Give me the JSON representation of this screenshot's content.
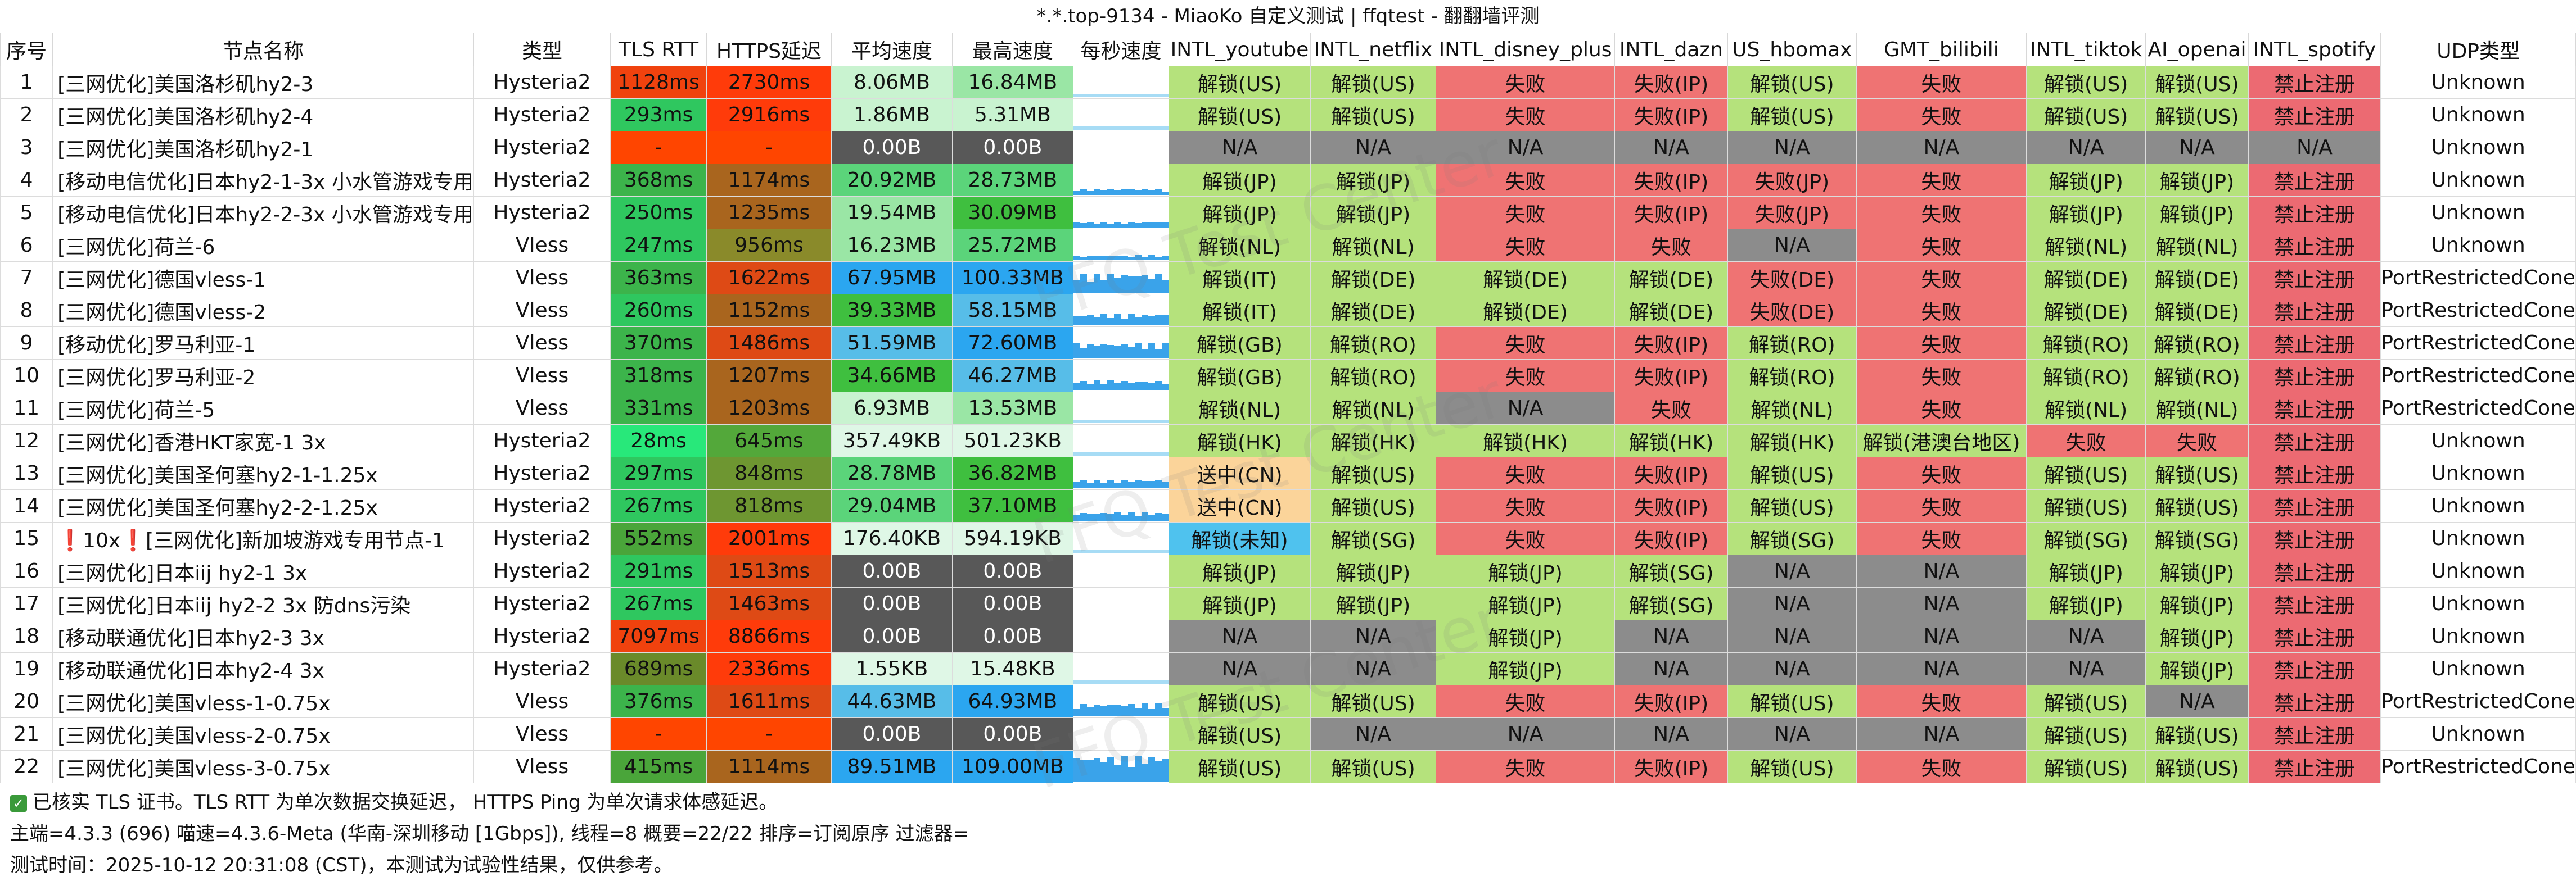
{
  "title": "*.*.top-9134 - MiaoKo 自定义测试 | ffqtest - 翻翻墙评测",
  "columns": [
    "序号",
    "节点名称",
    "类型",
    "TLS RTT",
    "HTTPS延迟",
    "平均速度",
    "最高速度",
    "每秒速度",
    "INTL_youtube",
    "INTL_netflix",
    "INTL_disney_plus",
    "INTL_dazn",
    "US_hbomax",
    "GMT_bilibili",
    "INTL_tiktok",
    "AI_openai",
    "INTL_spotify",
    "UDP类型"
  ],
  "rows": [
    {
      "id": "1",
      "name": "[三网优化]美国洛杉矶hy2-3",
      "type": "Hysteria2",
      "tls": "1128ms",
      "https": "2730ms",
      "avg": "8.06MB",
      "max": "16.84MB",
      "youtube": "解锁(US)",
      "netflix": "解锁(US)",
      "disney": "失败",
      "dazn": "失败(IP)",
      "hbomax": "解锁(US)",
      "bilibili": "失败",
      "tiktok": "解锁(US)",
      "openai": "解锁(US)",
      "spotify": "禁止注册",
      "udp": "Unknown"
    },
    {
      "id": "2",
      "name": "[三网优化]美国洛杉矶hy2-4",
      "type": "Hysteria2",
      "tls": "293ms",
      "https": "2916ms",
      "avg": "1.86MB",
      "max": "5.31MB",
      "youtube": "解锁(US)",
      "netflix": "解锁(US)",
      "disney": "失败",
      "dazn": "失败(IP)",
      "hbomax": "解锁(US)",
      "bilibili": "失败",
      "tiktok": "解锁(US)",
      "openai": "解锁(US)",
      "spotify": "禁止注册",
      "udp": "Unknown"
    },
    {
      "id": "3",
      "name": "[三网优化]美国洛杉矶hy2-1",
      "type": "Hysteria2",
      "tls": "-",
      "https": "-",
      "avg": "0.00B",
      "max": "0.00B",
      "youtube": "N/A",
      "netflix": "N/A",
      "disney": "N/A",
      "dazn": "N/A",
      "hbomax": "N/A",
      "bilibili": "N/A",
      "tiktok": "N/A",
      "openai": "N/A",
      "spotify": "N/A",
      "udp": "Unknown"
    },
    {
      "id": "4",
      "name": "[移动电信优化]日本hy2-1-3x 小水管游戏专用",
      "type": "Hysteria2",
      "tls": "368ms",
      "https": "1174ms",
      "avg": "20.92MB",
      "max": "28.73MB",
      "youtube": "解锁(JP)",
      "netflix": "解锁(JP)",
      "disney": "失败",
      "dazn": "失败(IP)",
      "hbomax": "失败(JP)",
      "bilibili": "失败",
      "tiktok": "解锁(JP)",
      "openai": "解锁(JP)",
      "spotify": "禁止注册",
      "udp": "Unknown"
    },
    {
      "id": "5",
      "name": "[移动电信优化]日本hy2-2-3x 小水管游戏专用",
      "type": "Hysteria2",
      "tls": "250ms",
      "https": "1235ms",
      "avg": "19.54MB",
      "max": "30.09MB",
      "youtube": "解锁(JP)",
      "netflix": "解锁(JP)",
      "disney": "失败",
      "dazn": "失败(IP)",
      "hbomax": "失败(JP)",
      "bilibili": "失败",
      "tiktok": "解锁(JP)",
      "openai": "解锁(JP)",
      "spotify": "禁止注册",
      "udp": "Unknown"
    },
    {
      "id": "6",
      "name": "[三网优化]荷兰-6",
      "type": "Vless",
      "tls": "247ms",
      "https": "956ms",
      "avg": "16.23MB",
      "max": "25.72MB",
      "youtube": "解锁(NL)",
      "netflix": "解锁(NL)",
      "disney": "失败",
      "dazn": "失败",
      "hbomax": "N/A",
      "bilibili": "失败",
      "tiktok": "解锁(NL)",
      "openai": "解锁(NL)",
      "spotify": "禁止注册",
      "udp": "Unknown"
    },
    {
      "id": "7",
      "name": "[三网优化]德国vless-1",
      "type": "Vless",
      "tls": "363ms",
      "https": "1622ms",
      "avg": "67.95MB",
      "max": "100.33MB",
      "youtube": "解锁(IT)",
      "netflix": "解锁(DE)",
      "disney": "解锁(DE)",
      "dazn": "解锁(DE)",
      "hbomax": "失败(DE)",
      "bilibili": "失败",
      "tiktok": "解锁(DE)",
      "openai": "解锁(DE)",
      "spotify": "禁止注册",
      "udp": "PortRestrictedCone"
    },
    {
      "id": "8",
      "name": "[三网优化]德国vless-2",
      "type": "Vless",
      "tls": "260ms",
      "https": "1152ms",
      "avg": "39.33MB",
      "max": "58.15MB",
      "youtube": "解锁(IT)",
      "netflix": "解锁(DE)",
      "disney": "解锁(DE)",
      "dazn": "解锁(DE)",
      "hbomax": "失败(DE)",
      "bilibili": "失败",
      "tiktok": "解锁(DE)",
      "openai": "解锁(DE)",
      "spotify": "禁止注册",
      "udp": "PortRestrictedCone"
    },
    {
      "id": "9",
      "name": "[移动优化]罗马利亚-1",
      "type": "Vless",
      "tls": "370ms",
      "https": "1486ms",
      "avg": "51.59MB",
      "max": "72.60MB",
      "youtube": "解锁(GB)",
      "netflix": "解锁(RO)",
      "disney": "失败",
      "dazn": "失败(IP)",
      "hbomax": "解锁(RO)",
      "bilibili": "失败",
      "tiktok": "解锁(RO)",
      "openai": "解锁(RO)",
      "spotify": "禁止注册",
      "udp": "PortRestrictedCone"
    },
    {
      "id": "10",
      "name": "[三网优化]罗马利亚-2",
      "type": "Vless",
      "tls": "318ms",
      "https": "1207ms",
      "avg": "34.66MB",
      "max": "46.27MB",
      "youtube": "解锁(GB)",
      "netflix": "解锁(RO)",
      "disney": "失败",
      "dazn": "失败(IP)",
      "hbomax": "解锁(RO)",
      "bilibili": "失败",
      "tiktok": "解锁(RO)",
      "openai": "解锁(RO)",
      "spotify": "禁止注册",
      "udp": "PortRestrictedCone"
    },
    {
      "id": "11",
      "name": "[三网优化]荷兰-5",
      "type": "Vless",
      "tls": "331ms",
      "https": "1203ms",
      "avg": "6.93MB",
      "max": "13.53MB",
      "youtube": "解锁(NL)",
      "netflix": "解锁(NL)",
      "disney": "N/A",
      "dazn": "失败",
      "hbomax": "解锁(NL)",
      "bilibili": "失败",
      "tiktok": "解锁(NL)",
      "openai": "解锁(NL)",
      "spotify": "禁止注册",
      "udp": "PortRestrictedCone"
    },
    {
      "id": "12",
      "name": "[三网优化]香港HKT家宽-1 3x",
      "type": "Hysteria2",
      "tls": "28ms",
      "https": "645ms",
      "avg": "357.49KB",
      "max": "501.23KB",
      "youtube": "解锁(HK)",
      "netflix": "解锁(HK)",
      "disney": "解锁(HK)",
      "dazn": "解锁(HK)",
      "hbomax": "解锁(HK)",
      "bilibili": "解锁(港澳台地区)",
      "tiktok": "失败",
      "openai": "失败",
      "spotify": "禁止注册",
      "udp": "Unknown"
    },
    {
      "id": "13",
      "name": "[三网优化]美国圣何塞hy2-1-1.25x",
      "type": "Hysteria2",
      "tls": "297ms",
      "https": "848ms",
      "avg": "28.78MB",
      "max": "36.82MB",
      "youtube": "送中(CN)",
      "netflix": "解锁(US)",
      "disney": "失败",
      "dazn": "失败(IP)",
      "hbomax": "解锁(US)",
      "bilibili": "失败",
      "tiktok": "解锁(US)",
      "openai": "解锁(US)",
      "spotify": "禁止注册",
      "udp": "Unknown"
    },
    {
      "id": "14",
      "name": "[三网优化]美国圣何塞hy2-2-1.25x",
      "type": "Hysteria2",
      "tls": "267ms",
      "https": "818ms",
      "avg": "29.04MB",
      "max": "37.10MB",
      "youtube": "送中(CN)",
      "netflix": "解锁(US)",
      "disney": "失败",
      "dazn": "失败(IP)",
      "hbomax": "解锁(US)",
      "bilibili": "失败",
      "tiktok": "解锁(US)",
      "openai": "解锁(US)",
      "spotify": "禁止注册",
      "udp": "Unknown"
    },
    {
      "id": "15",
      "name": "❗10x❗[三网优化]新加坡游戏专用节点-1",
      "type": "Hysteria2",
      "tls": "552ms",
      "https": "2001ms",
      "avg": "176.40KB",
      "max": "594.19KB",
      "youtube": "解锁(未知)",
      "netflix": "解锁(SG)",
      "disney": "失败",
      "dazn": "失败(IP)",
      "hbomax": "解锁(SG)",
      "bilibili": "失败",
      "tiktok": "解锁(SG)",
      "openai": "解锁(SG)",
      "spotify": "禁止注册",
      "udp": "Unknown"
    },
    {
      "id": "16",
      "name": "[三网优化]日本iij hy2-1 3x",
      "type": "Hysteria2",
      "tls": "291ms",
      "https": "1513ms",
      "avg": "0.00B",
      "max": "0.00B",
      "youtube": "解锁(JP)",
      "netflix": "解锁(JP)",
      "disney": "解锁(JP)",
      "dazn": "解锁(SG)",
      "hbomax": "N/A",
      "bilibili": "N/A",
      "tiktok": "解锁(JP)",
      "openai": "解锁(JP)",
      "spotify": "禁止注册",
      "udp": "Unknown"
    },
    {
      "id": "17",
      "name": "[三网优化]日本iij hy2-2 3x 防dns污染",
      "type": "Hysteria2",
      "tls": "267ms",
      "https": "1463ms",
      "avg": "0.00B",
      "max": "0.00B",
      "youtube": "解锁(JP)",
      "netflix": "解锁(JP)",
      "disney": "解锁(JP)",
      "dazn": "解锁(SG)",
      "hbomax": "N/A",
      "bilibili": "N/A",
      "tiktok": "解锁(JP)",
      "openai": "解锁(JP)",
      "spotify": "禁止注册",
      "udp": "Unknown"
    },
    {
      "id": "18",
      "name": "[移动联通优化]日本hy2-3 3x",
      "type": "Hysteria2",
      "tls": "7097ms",
      "https": "8866ms",
      "avg": "0.00B",
      "max": "0.00B",
      "youtube": "N/A",
      "netflix": "N/A",
      "disney": "解锁(JP)",
      "dazn": "N/A",
      "hbomax": "N/A",
      "bilibili": "N/A",
      "tiktok": "N/A",
      "openai": "解锁(JP)",
      "spotify": "禁止注册",
      "udp": "Unknown"
    },
    {
      "id": "19",
      "name": "[移动联通优化]日本hy2-4 3x",
      "type": "Hysteria2",
      "tls": "689ms",
      "https": "2336ms",
      "avg": "1.55KB",
      "max": "15.48KB",
      "youtube": "N/A",
      "netflix": "N/A",
      "disney": "解锁(JP)",
      "dazn": "N/A",
      "hbomax": "N/A",
      "bilibili": "N/A",
      "tiktok": "N/A",
      "openai": "解锁(JP)",
      "spotify": "禁止注册",
      "udp": "Unknown"
    },
    {
      "id": "20",
      "name": "[三网优化]美国vless-1-0.75x",
      "type": "Vless",
      "tls": "376ms",
      "https": "1611ms",
      "avg": "44.63MB",
      "max": "64.93MB",
      "youtube": "解锁(US)",
      "netflix": "解锁(US)",
      "disney": "失败",
      "dazn": "失败(IP)",
      "hbomax": "解锁(US)",
      "bilibili": "失败",
      "tiktok": "解锁(US)",
      "openai": "N/A",
      "spotify": "禁止注册",
      "udp": "PortRestrictedCone"
    },
    {
      "id": "21",
      "name": "[三网优化]美国vless-2-0.75x",
      "type": "Vless",
      "tls": "-",
      "https": "-",
      "avg": "0.00B",
      "max": "0.00B",
      "youtube": "解锁(US)",
      "netflix": "N/A",
      "disney": "N/A",
      "dazn": "N/A",
      "hbomax": "N/A",
      "bilibili": "N/A",
      "tiktok": "解锁(US)",
      "openai": "解锁(US)",
      "spotify": "禁止注册",
      "udp": "Unknown"
    },
    {
      "id": "22",
      "name": "[三网优化]美国vless-3-0.75x",
      "type": "Vless",
      "tls": "415ms",
      "https": "1114ms",
      "avg": "89.51MB",
      "max": "109.00MB",
      "youtube": "解锁(US)",
      "netflix": "解锁(US)",
      "disney": "失败",
      "dazn": "失败(IP)",
      "hbomax": "解锁(US)",
      "bilibili": "失败",
      "tiktok": "解锁(US)",
      "openai": "解锁(US)",
      "spotify": "禁止注册",
      "udp": "PortRestrictedCone"
    }
  ],
  "footer": {
    "line1": "已核实 TLS 证书。TLS RTT 为单次数据交换延迟， HTTPS Ping 为单次请求体感延迟。",
    "line2": "主端=4.3.3 (696) 喵速=4.3.6-Meta (华南-深圳移动 [1Gbps]), 线程=8 概要=22/22 排序=订阅原序 过滤器=",
    "line3": "测试时间：2025-10-12 20:31:08 (CST)，本测试为试验性结果，仅供参考。"
  },
  "watermark": "FFQ Test Center",
  "colors": {
    "unlock": "#b5e27c",
    "fail": "#ef7373",
    "na": "#8c8c8c",
    "block": "#ec6a72",
    "cn": "#fbd49a",
    "unknown": "#4fc2ee",
    "zero_speed": "#585858",
    "no_value": "#ff4500"
  }
}
